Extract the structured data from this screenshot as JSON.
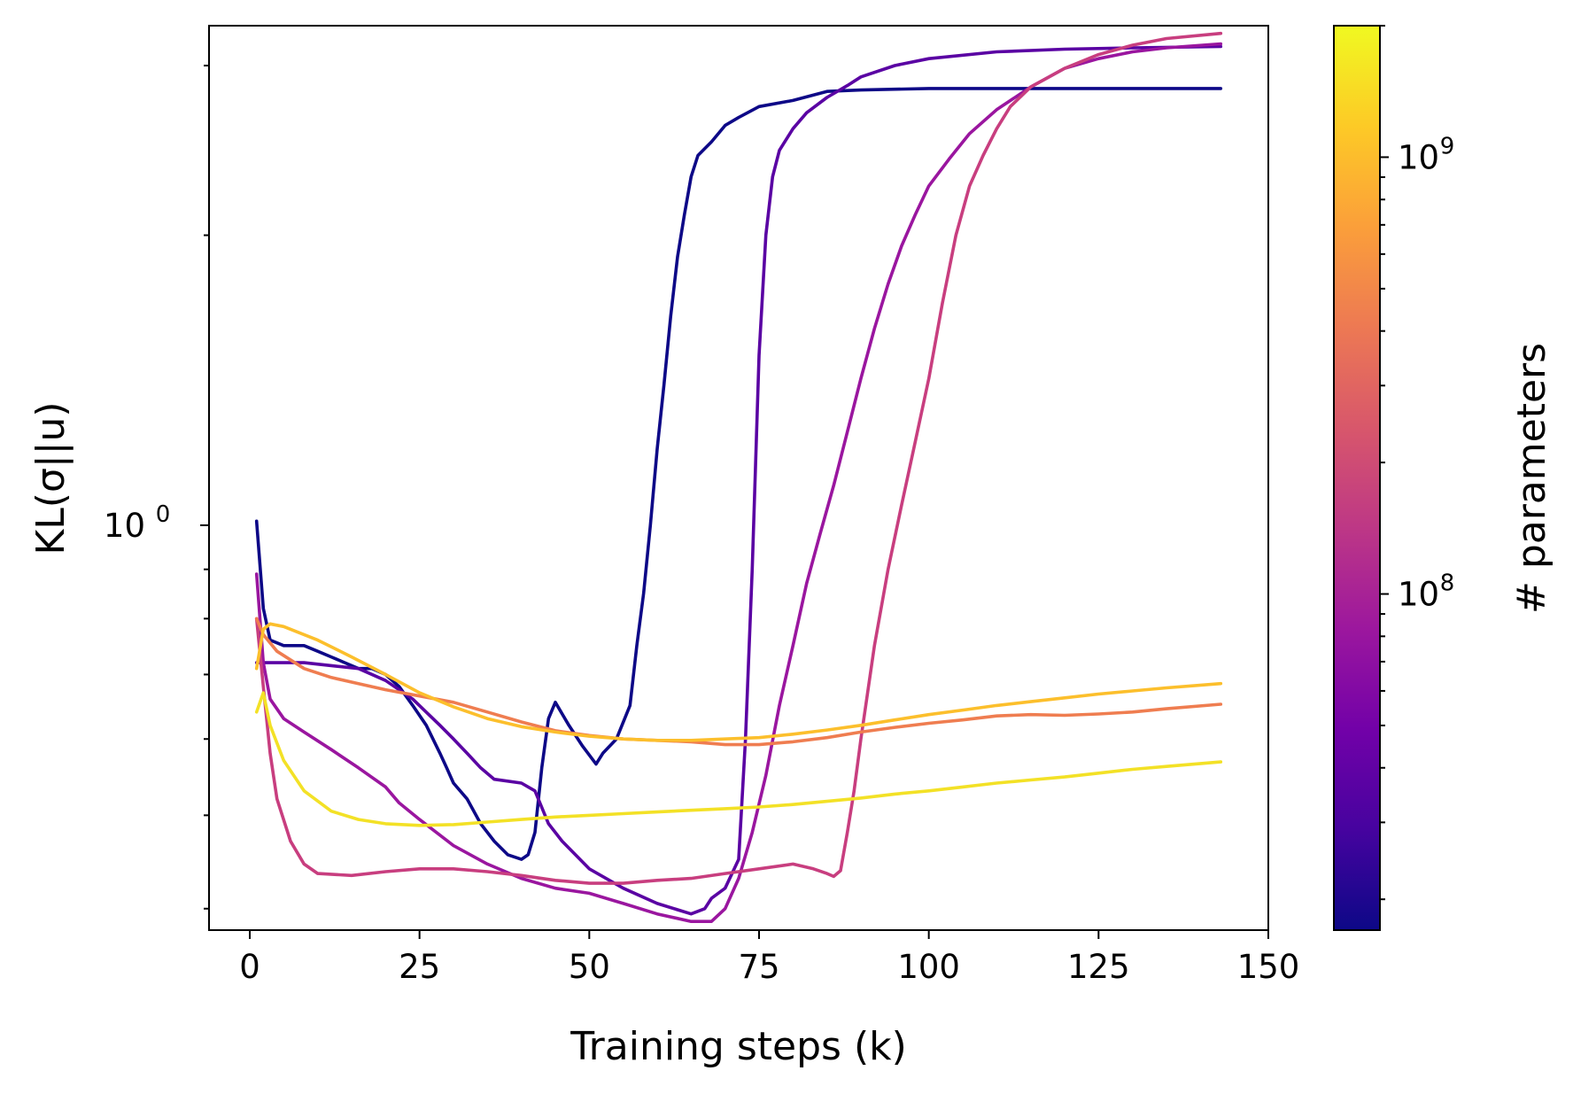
{
  "chart_data": {
    "type": "line",
    "xlabel": "Training steps (k)",
    "ylabel": "KL(σ||u)",
    "xlim": [
      -6,
      150
    ],
    "ylim": [
      0.38,
      3.3
    ],
    "yscale": "log",
    "grid": false,
    "xticks": [
      0,
      25,
      50,
      75,
      100,
      125,
      150
    ],
    "yticks": [
      {
        "value": 1.0,
        "base": "10",
        "exp": "0"
      }
    ],
    "colorbar": {
      "label": "# parameters",
      "scale": "log",
      "colormap": "plasma",
      "range": [
        17000000,
        2000000000
      ],
      "ticks": [
        {
          "value": 100000000,
          "base": "10",
          "exp": "8"
        },
        {
          "value": 1000000000,
          "base": "10",
          "exp": "9"
        }
      ],
      "stops": [
        "#0d0887",
        "#46039f",
        "#7201a8",
        "#9c179e",
        "#bd3786",
        "#d8576b",
        "#ed7953",
        "#fb9f3a",
        "#fdca26",
        "#f0f921"
      ]
    },
    "series": [
      {
        "color": "#0d0887",
        "points": [
          [
            1,
            1.01
          ],
          [
            2,
            0.82
          ],
          [
            3,
            0.76
          ],
          [
            5,
            0.75
          ],
          [
            8,
            0.75
          ],
          [
            10,
            0.74
          ],
          [
            12,
            0.73
          ],
          [
            14,
            0.72
          ],
          [
            16,
            0.71
          ],
          [
            18,
            0.71
          ],
          [
            20,
            0.7
          ],
          [
            22,
            0.68
          ],
          [
            24,
            0.65
          ],
          [
            26,
            0.62
          ],
          [
            28,
            0.58
          ],
          [
            29,
            0.56
          ],
          [
            30,
            0.54
          ],
          [
            32,
            0.52
          ],
          [
            34,
            0.49
          ],
          [
            36,
            0.47
          ],
          [
            38,
            0.455
          ],
          [
            40,
            0.45
          ],
          [
            41,
            0.455
          ],
          [
            42,
            0.48
          ],
          [
            43,
            0.56
          ],
          [
            44,
            0.63
          ],
          [
            45,
            0.655
          ],
          [
            47,
            0.62
          ],
          [
            49,
            0.59
          ],
          [
            51,
            0.565
          ],
          [
            52,
            0.58
          ],
          [
            54,
            0.6
          ],
          [
            56,
            0.65
          ],
          [
            57,
            0.75
          ],
          [
            58,
            0.85
          ],
          [
            59,
            1.0
          ],
          [
            60,
            1.2
          ],
          [
            61,
            1.4
          ],
          [
            62,
            1.65
          ],
          [
            63,
            1.9
          ],
          [
            64,
            2.1
          ],
          [
            65,
            2.3
          ],
          [
            66,
            2.42
          ],
          [
            68,
            2.5
          ],
          [
            70,
            2.6
          ],
          [
            72,
            2.65
          ],
          [
            75,
            2.72
          ],
          [
            80,
            2.76
          ],
          [
            85,
            2.82
          ],
          [
            90,
            2.83
          ],
          [
            100,
            2.84
          ],
          [
            110,
            2.84
          ],
          [
            120,
            2.84
          ],
          [
            143,
            2.84
          ]
        ]
      },
      {
        "color": "#5a02a3",
        "points": [
          [
            1,
            0.72
          ],
          [
            2,
            0.72
          ],
          [
            4,
            0.72
          ],
          [
            8,
            0.72
          ],
          [
            12,
            0.715
          ],
          [
            16,
            0.71
          ],
          [
            20,
            0.69
          ],
          [
            24,
            0.66
          ],
          [
            28,
            0.62
          ],
          [
            30,
            0.6
          ],
          [
            32,
            0.58
          ],
          [
            34,
            0.56
          ],
          [
            36,
            0.545
          ],
          [
            40,
            0.54
          ],
          [
            42,
            0.53
          ],
          [
            44,
            0.49
          ],
          [
            46,
            0.47
          ],
          [
            50,
            0.44
          ],
          [
            55,
            0.42
          ],
          [
            60,
            0.405
          ],
          [
            65,
            0.395
          ],
          [
            67,
            0.4
          ],
          [
            68,
            0.41
          ],
          [
            70,
            0.42
          ],
          [
            72,
            0.45
          ],
          [
            73,
            0.6
          ],
          [
            74,
            0.9
          ],
          [
            75,
            1.5
          ],
          [
            76,
            2.0
          ],
          [
            77,
            2.3
          ],
          [
            78,
            2.45
          ],
          [
            80,
            2.58
          ],
          [
            82,
            2.68
          ],
          [
            85,
            2.78
          ],
          [
            88,
            2.86
          ],
          [
            90,
            2.92
          ],
          [
            95,
            3.0
          ],
          [
            100,
            3.05
          ],
          [
            110,
            3.1
          ],
          [
            120,
            3.12
          ],
          [
            130,
            3.13
          ],
          [
            143,
            3.14
          ]
        ]
      },
      {
        "color": "#9a169f",
        "points": [
          [
            1,
            0.89
          ],
          [
            2,
            0.72
          ],
          [
            3,
            0.66
          ],
          [
            5,
            0.63
          ],
          [
            8,
            0.61
          ],
          [
            12,
            0.585
          ],
          [
            16,
            0.56
          ],
          [
            20,
            0.535
          ],
          [
            22,
            0.515
          ],
          [
            25,
            0.495
          ],
          [
            30,
            0.465
          ],
          [
            35,
            0.445
          ],
          [
            40,
            0.43
          ],
          [
            45,
            0.42
          ],
          [
            50,
            0.415
          ],
          [
            55,
            0.405
          ],
          [
            60,
            0.395
          ],
          [
            65,
            0.388
          ],
          [
            68,
            0.388
          ],
          [
            70,
            0.4
          ],
          [
            72,
            0.43
          ],
          [
            74,
            0.48
          ],
          [
            76,
            0.55
          ],
          [
            78,
            0.65
          ],
          [
            80,
            0.75
          ],
          [
            82,
            0.87
          ],
          [
            84,
            0.98
          ],
          [
            86,
            1.1
          ],
          [
            88,
            1.25
          ],
          [
            90,
            1.42
          ],
          [
            92,
            1.6
          ],
          [
            94,
            1.78
          ],
          [
            96,
            1.95
          ],
          [
            98,
            2.1
          ],
          [
            100,
            2.25
          ],
          [
            103,
            2.4
          ],
          [
            106,
            2.55
          ],
          [
            110,
            2.7
          ],
          [
            115,
            2.85
          ],
          [
            120,
            2.98
          ],
          [
            125,
            3.05
          ],
          [
            130,
            3.1
          ],
          [
            135,
            3.13
          ],
          [
            143,
            3.16
          ]
        ]
      },
      {
        "color": "#c83e7f",
        "points": [
          [
            1,
            0.8
          ],
          [
            2,
            0.68
          ],
          [
            3,
            0.58
          ],
          [
            4,
            0.52
          ],
          [
            6,
            0.47
          ],
          [
            8,
            0.445
          ],
          [
            10,
            0.435
          ],
          [
            15,
            0.433
          ],
          [
            20,
            0.437
          ],
          [
            25,
            0.44
          ],
          [
            30,
            0.44
          ],
          [
            35,
            0.437
          ],
          [
            40,
            0.433
          ],
          [
            45,
            0.428
          ],
          [
            50,
            0.425
          ],
          [
            55,
            0.425
          ],
          [
            60,
            0.428
          ],
          [
            65,
            0.43
          ],
          [
            70,
            0.435
          ],
          [
            75,
            0.44
          ],
          [
            80,
            0.445
          ],
          [
            83,
            0.44
          ],
          [
            85,
            0.435
          ],
          [
            86,
            0.432
          ],
          [
            87,
            0.438
          ],
          [
            88,
            0.48
          ],
          [
            89,
            0.53
          ],
          [
            90,
            0.6
          ],
          [
            92,
            0.75
          ],
          [
            94,
            0.9
          ],
          [
            96,
            1.05
          ],
          [
            98,
            1.22
          ],
          [
            100,
            1.42
          ],
          [
            102,
            1.7
          ],
          [
            104,
            2.0
          ],
          [
            106,
            2.25
          ],
          [
            108,
            2.42
          ],
          [
            110,
            2.58
          ],
          [
            112,
            2.72
          ],
          [
            115,
            2.85
          ],
          [
            120,
            2.98
          ],
          [
            125,
            3.08
          ],
          [
            130,
            3.15
          ],
          [
            135,
            3.2
          ],
          [
            143,
            3.24
          ]
        ]
      },
      {
        "color": "#ef7d50",
        "points": [
          [
            1,
            0.8
          ],
          [
            2,
            0.77
          ],
          [
            4,
            0.74
          ],
          [
            8,
            0.71
          ],
          [
            12,
            0.695
          ],
          [
            16,
            0.685
          ],
          [
            20,
            0.675
          ],
          [
            25,
            0.665
          ],
          [
            30,
            0.655
          ],
          [
            35,
            0.64
          ],
          [
            40,
            0.625
          ],
          [
            45,
            0.612
          ],
          [
            50,
            0.605
          ],
          [
            55,
            0.6
          ],
          [
            60,
            0.598
          ],
          [
            65,
            0.596
          ],
          [
            70,
            0.592
          ],
          [
            75,
            0.592
          ],
          [
            80,
            0.596
          ],
          [
            85,
            0.602
          ],
          [
            90,
            0.61
          ],
          [
            95,
            0.617
          ],
          [
            100,
            0.623
          ],
          [
            105,
            0.628
          ],
          [
            110,
            0.634
          ],
          [
            115,
            0.636
          ],
          [
            120,
            0.635
          ],
          [
            125,
            0.637
          ],
          [
            130,
            0.64
          ],
          [
            135,
            0.645
          ],
          [
            143,
            0.652
          ]
        ]
      },
      {
        "color": "#fcbf2c",
        "points": [
          [
            1,
            0.71
          ],
          [
            2,
            0.78
          ],
          [
            3,
            0.79
          ],
          [
            5,
            0.785
          ],
          [
            10,
            0.76
          ],
          [
            15,
            0.73
          ],
          [
            20,
            0.7
          ],
          [
            25,
            0.67
          ],
          [
            30,
            0.648
          ],
          [
            35,
            0.63
          ],
          [
            40,
            0.618
          ],
          [
            45,
            0.61
          ],
          [
            50,
            0.604
          ],
          [
            55,
            0.6
          ],
          [
            60,
            0.598
          ],
          [
            65,
            0.598
          ],
          [
            70,
            0.6
          ],
          [
            75,
            0.602
          ],
          [
            80,
            0.607
          ],
          [
            85,
            0.613
          ],
          [
            90,
            0.62
          ],
          [
            95,
            0.628
          ],
          [
            100,
            0.636
          ],
          [
            105,
            0.643
          ],
          [
            110,
            0.65
          ],
          [
            115,
            0.656
          ],
          [
            120,
            0.662
          ],
          [
            125,
            0.668
          ],
          [
            130,
            0.673
          ],
          [
            135,
            0.678
          ],
          [
            143,
            0.685
          ]
        ]
      },
      {
        "color": "#f3e126",
        "points": [
          [
            1,
            0.64
          ],
          [
            2,
            0.67
          ],
          [
            3,
            0.62
          ],
          [
            5,
            0.57
          ],
          [
            8,
            0.53
          ],
          [
            12,
            0.505
          ],
          [
            16,
            0.495
          ],
          [
            20,
            0.49
          ],
          [
            25,
            0.488
          ],
          [
            30,
            0.489
          ],
          [
            35,
            0.492
          ],
          [
            40,
            0.495
          ],
          [
            45,
            0.498
          ],
          [
            50,
            0.5
          ],
          [
            55,
            0.502
          ],
          [
            60,
            0.504
          ],
          [
            65,
            0.506
          ],
          [
            70,
            0.508
          ],
          [
            75,
            0.51
          ],
          [
            80,
            0.513
          ],
          [
            85,
            0.517
          ],
          [
            90,
            0.521
          ],
          [
            95,
            0.526
          ],
          [
            100,
            0.53
          ],
          [
            105,
            0.535
          ],
          [
            110,
            0.54
          ],
          [
            115,
            0.544
          ],
          [
            120,
            0.548
          ],
          [
            125,
            0.553
          ],
          [
            130,
            0.558
          ],
          [
            135,
            0.562
          ],
          [
            143,
            0.568
          ]
        ]
      }
    ]
  }
}
